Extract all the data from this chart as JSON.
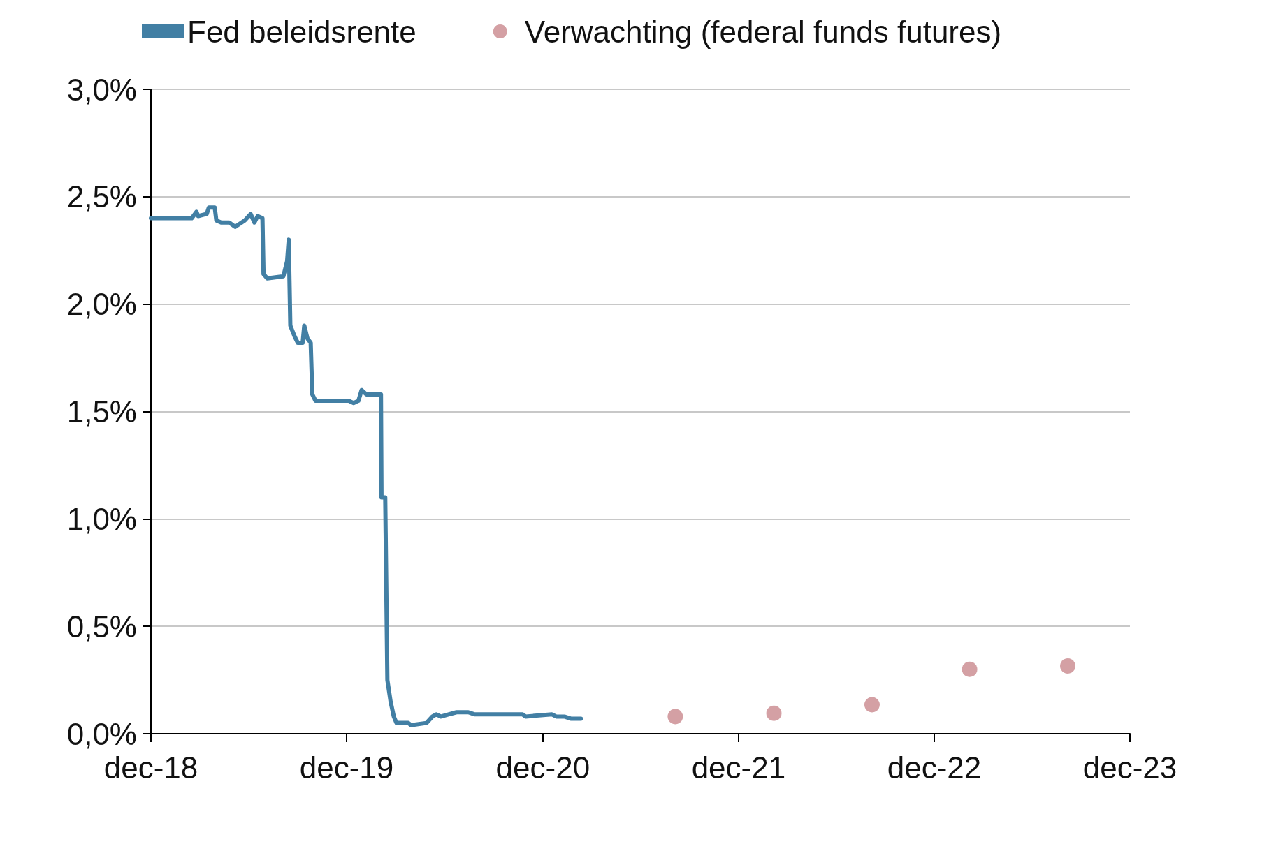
{
  "chart_data": {
    "type": "line",
    "series": [
      {
        "name": "Fed beleidsrente",
        "color": "#427fa4",
        "marker": "none",
        "line_style": "solid",
        "x": [
          "2018-12-01",
          "2019-02-15",
          "2019-02-24",
          "2019-02-27",
          "2019-03-15",
          "2019-03-19",
          "2019-03-30",
          "2019-04-02",
          "2019-04-11",
          "2019-04-26",
          "2019-05-07",
          "2019-05-25",
          "2019-06-05",
          "2019-06-12",
          "2019-06-18",
          "2019-06-27",
          "2019-06-29",
          "2019-07-06",
          "2019-08-05",
          "2019-08-12",
          "2019-08-15",
          "2019-08-18",
          "2019-08-26",
          "2019-09-01",
          "2019-09-10",
          "2019-09-13",
          "2019-09-19",
          "2019-09-25",
          "2019-09-28",
          "2019-10-04",
          "2019-12-05",
          "2019-12-14",
          "2019-12-23",
          "2019-12-29",
          "2020-01-07",
          "2020-02-03",
          "2020-02-04",
          "2020-02-11",
          "2020-02-15",
          "2020-02-21",
          "2020-02-27",
          "2020-03-03",
          "2020-03-25",
          "2020-03-30",
          "2020-04-28",
          "2020-05-09",
          "2020-05-16",
          "2020-05-25",
          "2020-06-08",
          "2020-06-23",
          "2020-07-15",
          "2020-07-27",
          "2020-10-24",
          "2020-10-30",
          "2020-12-18",
          "2020-12-26",
          "2021-01-10",
          "2021-01-22",
          "2021-02-10"
        ],
        "values": [
          2.4,
          2.4,
          2.43,
          2.41,
          2.42,
          2.45,
          2.45,
          2.39,
          2.38,
          2.38,
          2.36,
          2.39,
          2.42,
          2.38,
          2.41,
          2.4,
          2.14,
          2.12,
          2.13,
          2.2,
          2.3,
          1.9,
          1.85,
          1.82,
          1.82,
          1.9,
          1.84,
          1.82,
          1.58,
          1.55,
          1.55,
          1.54,
          1.55,
          1.6,
          1.58,
          1.58,
          1.1,
          1.1,
          0.25,
          0.15,
          0.08,
          0.05,
          0.05,
          0.04,
          0.05,
          0.08,
          0.09,
          0.08,
          0.09,
          0.1,
          0.1,
          0.09,
          0.09,
          0.08,
          0.09,
          0.08,
          0.08,
          0.07,
          0.07
        ]
      },
      {
        "name": "Verwachting (federal funds futures)",
        "color": "#d4a0a4",
        "type": "scatter",
        "marker": "circle",
        "x": [
          "2021-08-05",
          "2022-02-05",
          "2022-08-07",
          "2023-02-05",
          "2023-08-07"
        ],
        "values": [
          0.08,
          0.095,
          0.135,
          0.3,
          0.315
        ]
      }
    ],
    "xlim": [
      "2018-12-01",
      "2023-12-01"
    ],
    "xticks": [
      {
        "value": "2018-12-01",
        "label": "dec-18"
      },
      {
        "value": "2019-12-01",
        "label": "dec-19"
      },
      {
        "value": "2020-12-01",
        "label": "dec-20"
      },
      {
        "value": "2021-12-01",
        "label": "dec-21"
      },
      {
        "value": "2022-12-01",
        "label": "dec-22"
      },
      {
        "value": "2023-12-01",
        "label": "dec-23"
      }
    ],
    "ylim": [
      0,
      3
    ],
    "yticks": [
      {
        "value": 0,
        "label": "0,0%"
      },
      {
        "value": 0.5,
        "label": "0,5%"
      },
      {
        "value": 1,
        "label": "1,0%"
      },
      {
        "value": 1.5,
        "label": "1,5%"
      },
      {
        "value": 2,
        "label": "2,0%"
      },
      {
        "value": 2.5,
        "label": "2,5%"
      },
      {
        "value": 3,
        "label": "3,0%"
      }
    ],
    "grid": "y",
    "legend": "top"
  }
}
